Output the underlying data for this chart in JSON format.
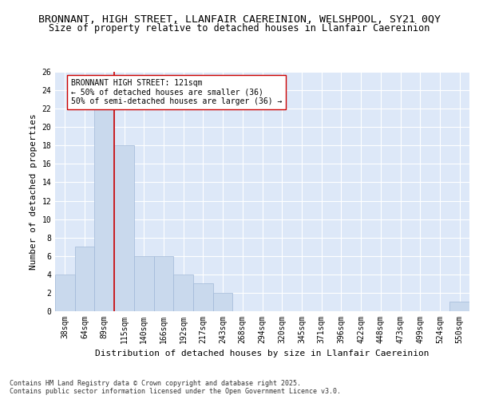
{
  "title1": "BRONNANT, HIGH STREET, LLANFAIR CAEREINION, WELSHPOOL, SY21 0QY",
  "title2": "Size of property relative to detached houses in Llanfair Caereinion",
  "xlabel": "Distribution of detached houses by size in Llanfair Caereinion",
  "ylabel": "Number of detached properties",
  "categories": [
    "38sqm",
    "64sqm",
    "89sqm",
    "115sqm",
    "140sqm",
    "166sqm",
    "192sqm",
    "217sqm",
    "243sqm",
    "268sqm",
    "294sqm",
    "320sqm",
    "345sqm",
    "371sqm",
    "396sqm",
    "422sqm",
    "448sqm",
    "473sqm",
    "499sqm",
    "524sqm",
    "550sqm"
  ],
  "values": [
    4,
    7,
    22,
    18,
    6,
    6,
    4,
    3,
    2,
    0,
    0,
    0,
    0,
    0,
    0,
    0,
    0,
    0,
    0,
    0,
    1
  ],
  "bar_color": "#c9d9ed",
  "bar_edge_color": "#a0b8d8",
  "vline_x_index": 2.5,
  "vline_color": "#cc0000",
  "annotation_text": "BRONNANT HIGH STREET: 121sqm\n← 50% of detached houses are smaller (36)\n50% of semi-detached houses are larger (36) →",
  "annotation_box_color": "#ffffff",
  "annotation_box_edge": "#cc0000",
  "ylim": [
    0,
    26
  ],
  "yticks": [
    0,
    2,
    4,
    6,
    8,
    10,
    12,
    14,
    16,
    18,
    20,
    22,
    24,
    26
  ],
  "background_color": "#dde8f8",
  "grid_color": "#ffffff",
  "footer": "Contains HM Land Registry data © Crown copyright and database right 2025.\nContains public sector information licensed under the Open Government Licence v3.0.",
  "title_fontsize": 9.5,
  "subtitle_fontsize": 8.5,
  "axis_label_fontsize": 8,
  "tick_fontsize": 7,
  "footer_fontsize": 6,
  "annot_fontsize": 7
}
